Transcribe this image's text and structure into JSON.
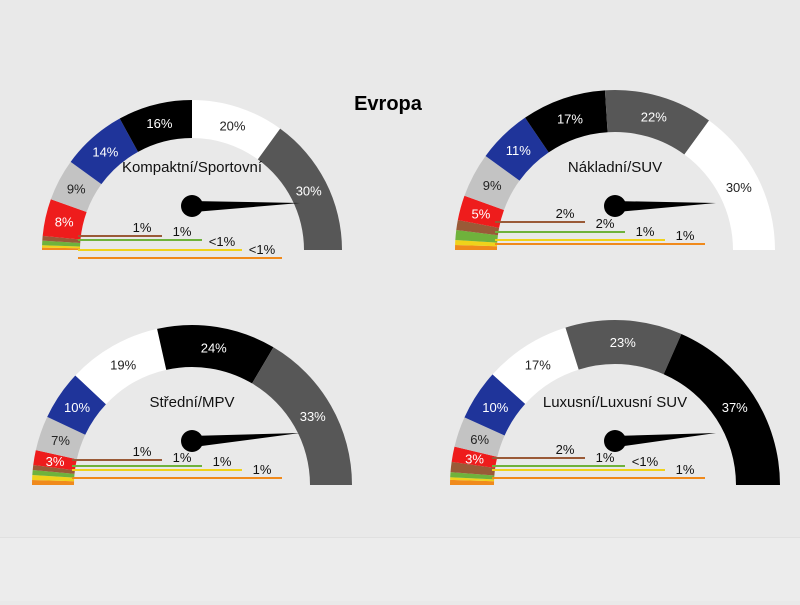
{
  "title": "Evropa",
  "colors": {
    "background": "#e9e9e9",
    "segments": {
      "orange": "#f08a1c",
      "yellow": "#f0d21a",
      "green": "#6fb23c",
      "brown": "#9a5a37",
      "red": "#ee1c1c",
      "silver": "#c3c3c3",
      "blue": "#1f349a",
      "black": "#000000",
      "white": "#ffffff",
      "darkgray": "#575757"
    },
    "needle": "#000000"
  },
  "chart_data": [
    {
      "type": "gauge",
      "title": "Kompaktní/Sportovní",
      "categories": [
        "orange",
        "yellow",
        "green",
        "brown",
        "red",
        "silver",
        "blue",
        "black",
        "white",
        "darkgray"
      ],
      "values": [
        0.5,
        0.5,
        1,
        1,
        8,
        9,
        14,
        16,
        20,
        30
      ],
      "labels": [
        "<1%",
        "<1%",
        "1%",
        "1%",
        "8%",
        "9%",
        "14%",
        "16%",
        "20%",
        "30%"
      ],
      "needle_value": 25
    },
    {
      "type": "gauge",
      "title": "Nákladní/SUV",
      "categories": [
        "orange",
        "yellow",
        "green",
        "brown",
        "red",
        "silver",
        "blue",
        "black",
        "darkgray",
        "white"
      ],
      "values": [
        1,
        1,
        2,
        2,
        5,
        9,
        11,
        17,
        22,
        30
      ],
      "labels": [
        "1%",
        "1%",
        "2%",
        "2%",
        "5%",
        "9%",
        "11%",
        "17%",
        "22%",
        "30%"
      ],
      "needle_value": 25
    },
    {
      "type": "gauge",
      "title": "Střední/MPV",
      "categories": [
        "orange",
        "yellow",
        "green",
        "brown",
        "red",
        "silver",
        "blue",
        "white",
        "black",
        "darkgray"
      ],
      "values": [
        1,
        1,
        1,
        1,
        3,
        7,
        10,
        19,
        24,
        33
      ],
      "labels": [
        "1%",
        "1%",
        "1%",
        "1%",
        "3%",
        "7%",
        "10%",
        "19%",
        "24%",
        "33%"
      ],
      "needle_value": 25
    },
    {
      "type": "gauge",
      "title": "Luxusní/Luxusní SUV",
      "categories": [
        "orange",
        "yellow",
        "green",
        "brown",
        "red",
        "silver",
        "blue",
        "white",
        "darkgray",
        "black"
      ],
      "values": [
        1,
        0.5,
        1,
        2,
        3,
        6,
        10,
        17,
        23,
        37
      ],
      "labels": [
        "1%",
        "<1%",
        "1%",
        "2%",
        "3%",
        "6%",
        "10%",
        "17%",
        "23%",
        "37%"
      ],
      "needle_value": 25
    }
  ]
}
